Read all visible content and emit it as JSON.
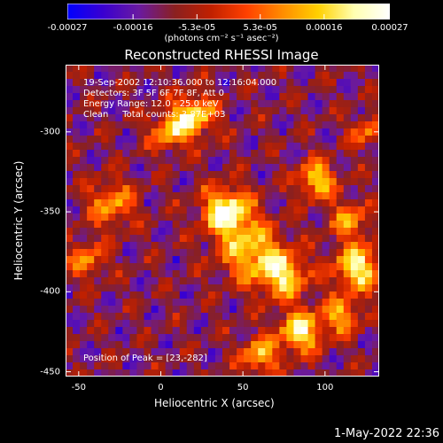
{
  "chart_data": {
    "type": "heatmap",
    "title": "Reconstructed RHESSI Image",
    "xlabel": "Heliocentric X (arcsec)",
    "ylabel": "Heliocentric Y (arcsec)",
    "xlim": [
      -58,
      133
    ],
    "ylim": [
      -453,
      -258
    ],
    "xticks": [
      "-50",
      "0",
      "50",
      "100"
    ],
    "xtick_values": [
      -50,
      0,
      50,
      100
    ],
    "yticks": [
      "-300",
      "-350",
      "-400",
      "-450"
    ],
    "ytick_values": [
      -300,
      -350,
      -400,
      -450
    ],
    "colorbar": {
      "ticks": [
        "-0.00027",
        "-0.00016",
        "-5.3e-05",
        "5.3e-05",
        "0.00016",
        "0.00027"
      ],
      "tick_values": [
        -0.00027,
        -0.00016,
        -5.3e-05,
        5.3e-05,
        0.00016,
        0.00027
      ],
      "range": [
        -0.00027,
        0.00027
      ],
      "unit_label": "(photons cm⁻² s⁻¹ asec⁻²)",
      "colormap": [
        "#0000ff",
        "#3a00d0",
        "#6a1aa0",
        "#8a2020",
        "#c02000",
        "#ff4000",
        "#ff8c00",
        "#ffd000",
        "#ffffb0",
        "#ffffff"
      ]
    },
    "annotations": {
      "time": "19-Sep-2002 12:10:36.000 to 12:16:04.000",
      "detectors": "Detectors: 3F 5F 6F 7F 8F, Att 0",
      "energy": "Energy Range: 12.0 - 25.0 keV",
      "method": "Clean     Total counts: 3.87E+03",
      "peak": "Position of Peak = [23,-282]"
    },
    "sources": [
      {
        "x": 40,
        "y": -350,
        "amp": 1.0,
        "sigma": 10
      },
      {
        "x": 20,
        "y": -290,
        "amp": 0.8,
        "sigma": 9
      },
      {
        "x": 5,
        "y": -300,
        "amp": 0.6,
        "sigma": 8
      },
      {
        "x": 95,
        "y": -330,
        "amp": 0.75,
        "sigma": 8
      },
      {
        "x": 55,
        "y": -375,
        "amp": 0.7,
        "sigma": 13
      },
      {
        "x": 75,
        "y": -390,
        "amp": 0.75,
        "sigma": 10
      },
      {
        "x": 120,
        "y": -385,
        "amp": 0.85,
        "sigma": 10
      },
      {
        "x": 85,
        "y": -425,
        "amp": 0.85,
        "sigma": 9
      },
      {
        "x": 60,
        "y": -440,
        "amp": 0.65,
        "sigma": 8
      },
      {
        "x": 110,
        "y": -415,
        "amp": 0.6,
        "sigma": 8
      },
      {
        "x": -30,
        "y": -345,
        "amp": 0.55,
        "sigma": 10
      },
      {
        "x": -45,
        "y": -380,
        "amp": 0.5,
        "sigma": 8
      },
      {
        "x": 115,
        "y": -355,
        "amp": 0.55,
        "sigma": 8
      },
      {
        "x": 125,
        "y": -300,
        "amp": 0.45,
        "sigma": 7
      }
    ]
  },
  "footer": {
    "timestamp": "1-May-2022 22:36"
  }
}
